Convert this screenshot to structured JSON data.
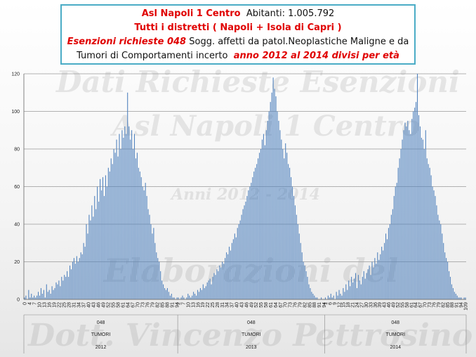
{
  "title": {
    "line1_red": "Asl Napoli 1 Centro",
    "line1_black": "Abitanti: 1.005.792",
    "line2": "Tutti i distretti ( Napoli + Isola di Capri )",
    "line3_red_italic": "Esenzioni richieste 048",
    "line3_black": "Sogg. affetti da patol.Neoplastiche Maligne e da",
    "line4_black": "Tumori di Comportamenti incerto",
    "line4_red_italic": "anno 2012 al 2014 divisi per età"
  },
  "watermarks": {
    "w1": "Dati Richieste Esenzioni",
    "w2": "Asl Napoli 1 Centro",
    "w3": "Anni 2012 - 2014",
    "w4": "Elaborazioni del",
    "w5": "Dott. Vincenzo Pettrosino"
  },
  "chart_data": {
    "type": "bar",
    "ylim": [
      0,
      120
    ],
    "y_ticks": [
      0,
      20,
      40,
      60,
      80,
      100,
      120
    ],
    "grid": true,
    "color": "#4f81bd",
    "groups": [
      {
        "code": "048",
        "desc": "TUMORI",
        "year": "2012",
        "x_tick_labels": [
          "0",
          "4",
          "7",
          "10",
          "13",
          "16",
          "19",
          "22",
          "25",
          "28",
          "31",
          "34",
          "37",
          "40",
          "43",
          "46",
          "49",
          "52",
          "55",
          "58",
          "61",
          "64",
          "67",
          "70",
          "73",
          "76",
          "79",
          "82",
          "85",
          "88",
          "91",
          "94"
        ],
        "values": [
          1,
          2,
          0,
          5,
          1,
          3,
          1,
          2,
          1,
          2,
          4,
          2,
          6,
          3,
          5,
          1,
          8,
          4,
          5,
          3,
          7,
          5,
          6,
          9,
          8,
          10,
          7,
          12,
          10,
          13,
          12,
          15,
          12,
          18,
          16,
          20,
          22,
          19,
          23,
          20,
          22,
          25,
          24,
          30,
          28,
          40,
          35,
          45,
          42,
          50,
          44,
          55,
          48,
          60,
          52,
          64,
          58,
          65,
          55,
          66,
          60,
          70,
          68,
          75,
          72,
          80,
          78,
          85,
          76,
          88,
          80,
          90,
          86,
          92,
          88,
          110,
          92,
          85,
          90,
          80,
          88,
          75,
          78,
          70,
          68,
          65,
          60,
          58,
          62,
          55,
          48,
          45,
          40,
          35,
          38,
          30,
          25,
          22,
          20,
          15,
          10,
          8,
          6,
          5,
          6,
          4,
          2,
          3,
          1,
          1,
          0,
          1
        ]
      },
      {
        "code": "048",
        "desc": "TUMORI",
        "year": "2013",
        "x_tick_labels": [
          "2",
          "7",
          "10",
          "13",
          "16",
          "19",
          "22",
          "25",
          "28",
          "31",
          "34",
          "37",
          "40",
          "43",
          "46",
          "49",
          "52",
          "55",
          "58",
          "61",
          "64",
          "67",
          "70",
          "73",
          "76",
          "79",
          "82",
          "85",
          "88",
          "91",
          "94"
        ],
        "values": [
          1,
          0,
          1,
          2,
          1,
          0,
          1,
          3,
          2,
          1,
          2,
          4,
          3,
          2,
          5,
          4,
          6,
          5,
          8,
          6,
          7,
          9,
          10,
          11,
          8,
          12,
          14,
          13,
          16,
          15,
          18,
          17,
          20,
          19,
          22,
          25,
          24,
          28,
          26,
          30,
          32,
          35,
          33,
          38,
          40,
          42,
          45,
          48,
          50,
          52,
          55,
          58,
          60,
          62,
          65,
          68,
          70,
          72,
          75,
          78,
          80,
          85,
          88,
          82,
          90,
          95,
          100,
          105,
          110,
          118,
          112,
          108,
          100,
          95,
          90,
          85,
          80,
          75,
          83,
          78,
          72,
          70,
          65,
          60,
          55,
          50,
          45,
          40,
          35,
          30,
          25,
          20,
          18,
          15,
          12,
          8,
          6,
          4,
          3,
          2,
          1,
          1,
          0,
          0,
          1,
          0,
          0
        ]
      },
      {
        "code": "048",
        "desc": "TUMORI",
        "year": "2014",
        "x_tick_labels": [
          "1",
          "6",
          "9",
          "12",
          "15",
          "18",
          "21",
          "24",
          "27",
          "30",
          "33",
          "36",
          "39",
          "43",
          "46",
          "49",
          "52",
          "55",
          "58",
          "61",
          "64",
          "67",
          "70",
          "73",
          "76",
          "79",
          "82",
          "85",
          "88",
          "91",
          "94",
          "109"
        ],
        "values": [
          1,
          0,
          2,
          1,
          3,
          1,
          2,
          0,
          4,
          2,
          5,
          3,
          2,
          6,
          4,
          8,
          5,
          10,
          7,
          12,
          9,
          11,
          14,
          6,
          13,
          10,
          8,
          12,
          15,
          11,
          14,
          16,
          18,
          13,
          20,
          17,
          22,
          19,
          25,
          21,
          24,
          28,
          26,
          30,
          35,
          32,
          38,
          40,
          45,
          48,
          55,
          60,
          62,
          70,
          75,
          80,
          85,
          90,
          94,
          92,
          95,
          90,
          88,
          96,
          100,
          102,
          105,
          120,
          98,
          92,
          86,
          85,
          80,
          90,
          75,
          72,
          70,
          66,
          60,
          58,
          55,
          50,
          45,
          42,
          40,
          35,
          30,
          25,
          22,
          20,
          15,
          12,
          8,
          6,
          4,
          3,
          2,
          1,
          1,
          1,
          0,
          1,
          1
        ]
      }
    ]
  }
}
